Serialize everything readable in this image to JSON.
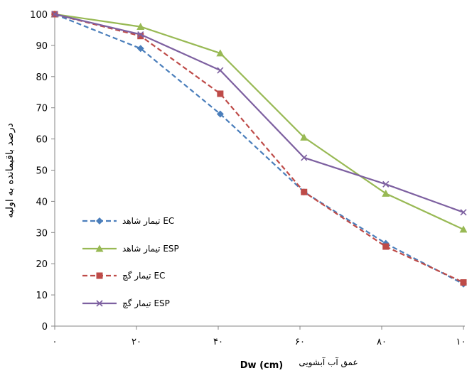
{
  "chart_data": {
    "type": "line",
    "title": "",
    "xlabel": "عمق آب آبشویی  Dw (cm)",
    "xlabel_parts": {
      "farsi": "عمق آب آبشویی",
      "latin": "Dw (cm)"
    },
    "ylabel": "درصد باقیمانده به اولیه",
    "xlim": [
      0,
      100
    ],
    "ylim": [
      0,
      100
    ],
    "x": [
      0,
      21,
      40.5,
      61,
      81,
      100
    ],
    "x_tick_labels": [
      "۰",
      "۲۰",
      "۴۰",
      "۶۰",
      "۸۰",
      "۱۰۰"
    ],
    "y_ticks": [
      0,
      10,
      20,
      30,
      40,
      50,
      60,
      70,
      80,
      90,
      100
    ],
    "grid": false,
    "legend_position": "left",
    "series": [
      {
        "name": "تیمار شاهد EC",
        "color": "#4a7ebb",
        "dash": "dashed",
        "marker": "diamond",
        "values": [
          100,
          89,
          68,
          43,
          26.5,
          13.5
        ]
      },
      {
        "name": "تیمار شاهد ESP",
        "color": "#98b954",
        "dash": "solid",
        "marker": "triangle",
        "values": [
          100,
          96,
          87.5,
          60.5,
          42.5,
          31
        ]
      },
      {
        "name": "تیمار گچ EC",
        "color": "#be4b48",
        "dash": "dashed",
        "marker": "square",
        "values": [
          100,
          93,
          74.5,
          43,
          25.5,
          14
        ]
      },
      {
        "name": "تیمار گچ ESP",
        "color": "#7d60a0",
        "dash": "solid",
        "marker": "x",
        "values": [
          100,
          93.5,
          82,
          54,
          45.5,
          36.5
        ]
      }
    ]
  }
}
